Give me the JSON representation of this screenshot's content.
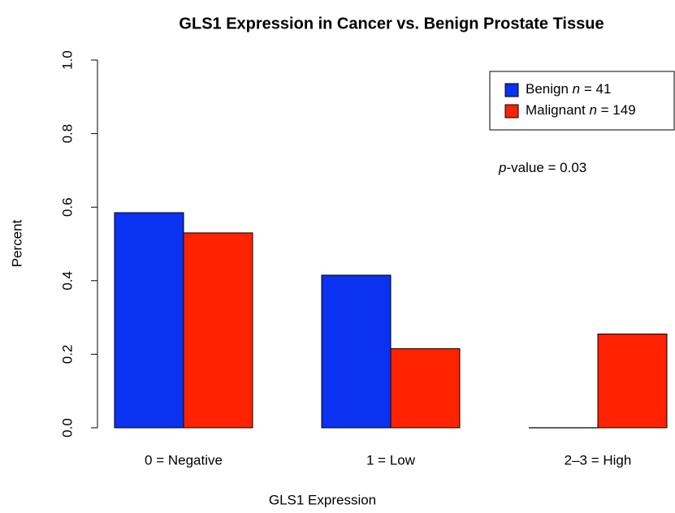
{
  "chart_data": {
    "type": "bar",
    "title": "GLS1 Expression in Cancer vs. Benign Prostate Tissue",
    "x_label": "GLS1 Expression",
    "y_label": "Percent",
    "annotation": "p-value = 0.03",
    "categories": [
      "0 = Negative",
      "1 = Low",
      "2–3 = High"
    ],
    "series": [
      {
        "name": "Benign n = 41",
        "color": "#0a32f0",
        "values": [
          0.585,
          0.415,
          0
        ]
      },
      {
        "name": "Malignant n = 149",
        "color": "#ff2200",
        "values": [
          0.53,
          0.215,
          0.255
        ]
      }
    ],
    "ylim": [
      0,
      1
    ],
    "yticks": [
      {
        "value": 0,
        "label": "0.0"
      },
      0.2,
      0.4,
      0.6,
      0.8,
      {
        "value": 1,
        "label": "1.0"
      }
    ],
    "grid": false,
    "legend": "top-right"
  }
}
